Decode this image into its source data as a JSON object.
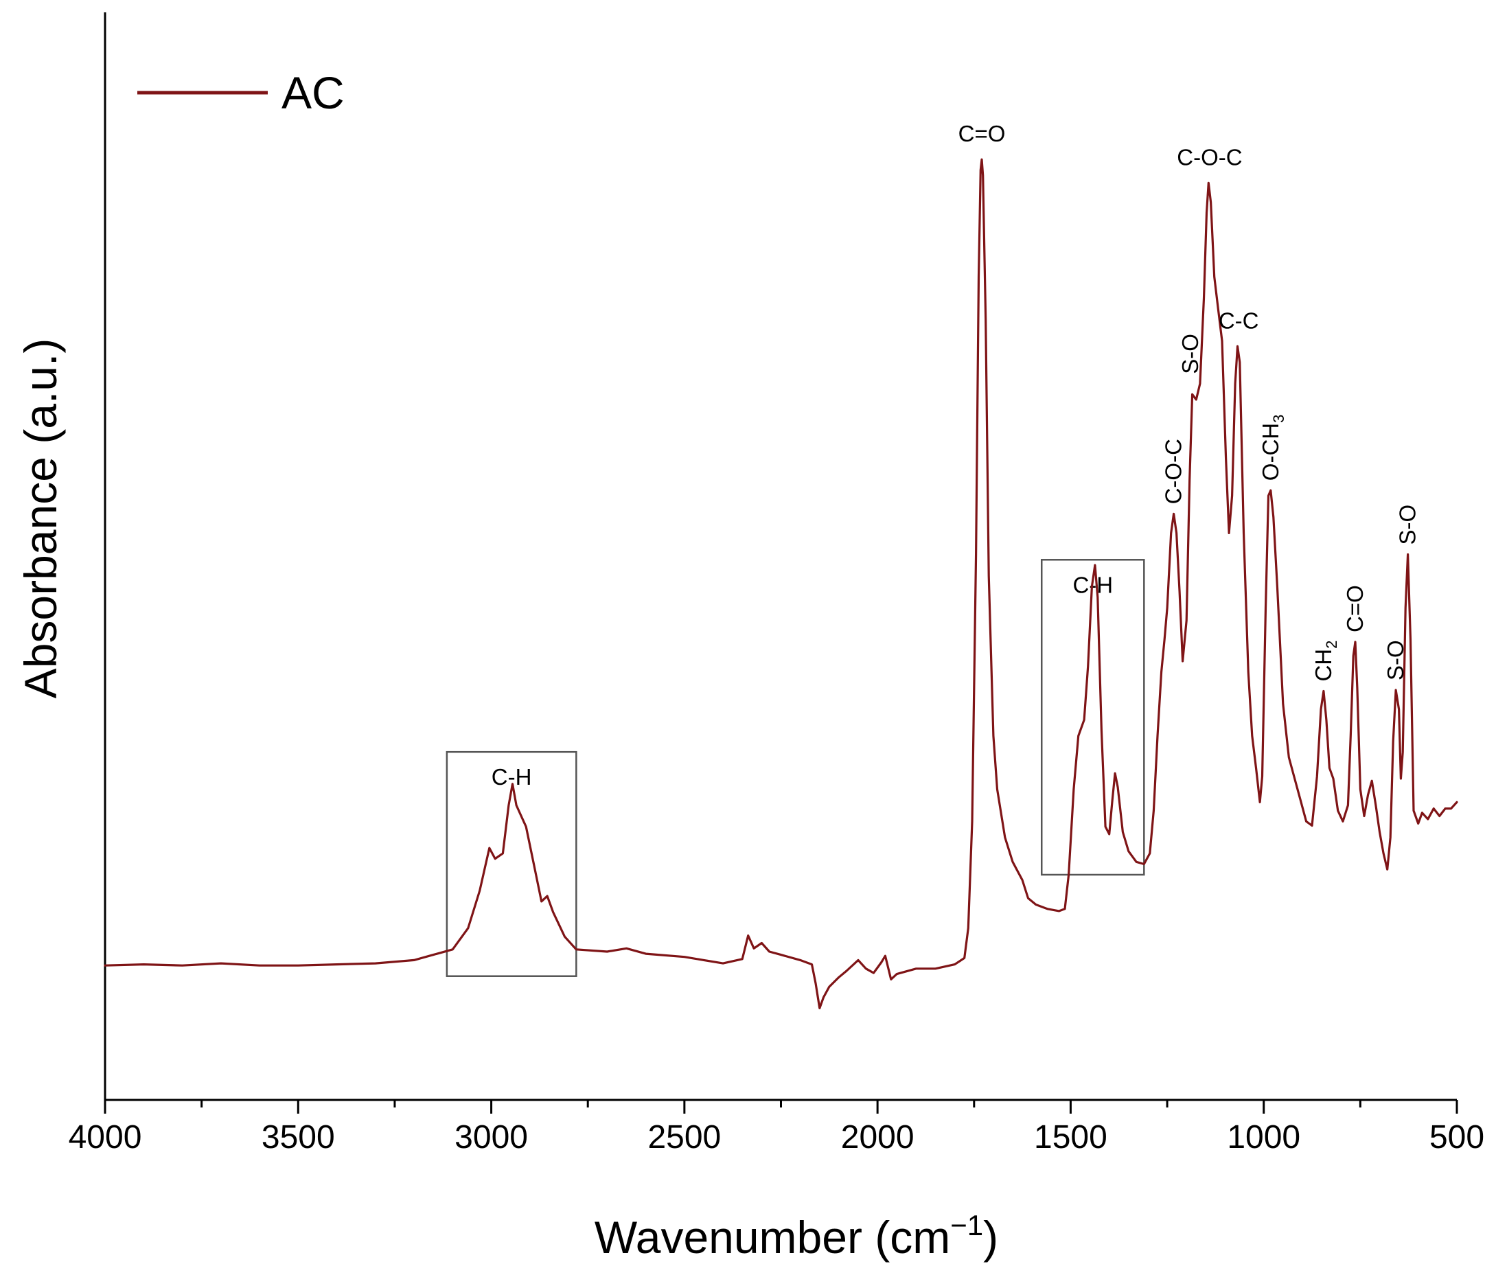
{
  "chart_data": {
    "type": "line",
    "xlabel": "Wavenumber (cm",
    "xlabel_sup": "−1",
    "xlabel_close": ")",
    "ylabel": "Absorbance (a.u.)",
    "xlim": [
      4000,
      500
    ],
    "x_reversed": true,
    "ylim": [
      0,
      1.0
    ],
    "x_ticks": [
      4000,
      3500,
      3000,
      2500,
      2000,
      1500,
      1000,
      500
    ],
    "x_tick_labels": [
      "4000",
      "3500",
      "3000",
      "2500",
      "2000",
      "1500",
      "1000",
      "500"
    ],
    "x_minor_ticks": [
      3750,
      3250,
      2750,
      2250,
      1750,
      1250,
      750
    ],
    "y_ticks_shown": false,
    "grid": false,
    "legend": {
      "position": "top-left",
      "entries": [
        {
          "label": "AC",
          "color": "#7f1416"
        }
      ]
    },
    "series": [
      {
        "name": "AC",
        "color": "#7f1416",
        "points": [
          [
            4000,
            0.115
          ],
          [
            3900,
            0.116
          ],
          [
            3800,
            0.115
          ],
          [
            3700,
            0.117
          ],
          [
            3600,
            0.115
          ],
          [
            3500,
            0.115
          ],
          [
            3400,
            0.116
          ],
          [
            3300,
            0.117
          ],
          [
            3200,
            0.12
          ],
          [
            3150,
            0.125
          ],
          [
            3100,
            0.13
          ],
          [
            3060,
            0.15
          ],
          [
            3030,
            0.185
          ],
          [
            3005,
            0.225
          ],
          [
            2990,
            0.215
          ],
          [
            2970,
            0.22
          ],
          [
            2955,
            0.265
          ],
          [
            2945,
            0.285
          ],
          [
            2935,
            0.265
          ],
          [
            2910,
            0.245
          ],
          [
            2890,
            0.21
          ],
          [
            2870,
            0.175
          ],
          [
            2855,
            0.18
          ],
          [
            2840,
            0.165
          ],
          [
            2810,
            0.142
          ],
          [
            2780,
            0.13
          ],
          [
            2700,
            0.128
          ],
          [
            2650,
            0.131
          ],
          [
            2600,
            0.126
          ],
          [
            2500,
            0.123
          ],
          [
            2450,
            0.12
          ],
          [
            2400,
            0.117
          ],
          [
            2350,
            0.121
          ],
          [
            2335,
            0.143
          ],
          [
            2320,
            0.131
          ],
          [
            2300,
            0.136
          ],
          [
            2280,
            0.128
          ],
          [
            2250,
            0.125
          ],
          [
            2200,
            0.12
          ],
          [
            2170,
            0.116
          ],
          [
            2160,
            0.098
          ],
          [
            2150,
            0.075
          ],
          [
            2140,
            0.085
          ],
          [
            2125,
            0.095
          ],
          [
            2100,
            0.104
          ],
          [
            2080,
            0.11
          ],
          [
            2050,
            0.12
          ],
          [
            2030,
            0.112
          ],
          [
            2010,
            0.108
          ],
          [
            1990,
            0.118
          ],
          [
            1980,
            0.124
          ],
          [
            1965,
            0.102
          ],
          [
            1950,
            0.107
          ],
          [
            1900,
            0.112
          ],
          [
            1850,
            0.112
          ],
          [
            1800,
            0.116
          ],
          [
            1775,
            0.122
          ],
          [
            1765,
            0.15
          ],
          [
            1755,
            0.25
          ],
          [
            1745,
            0.5
          ],
          [
            1738,
            0.76
          ],
          [
            1733,
            0.86
          ],
          [
            1730,
            0.87
          ],
          [
            1727,
            0.855
          ],
          [
            1720,
            0.72
          ],
          [
            1712,
            0.48
          ],
          [
            1700,
            0.33
          ],
          [
            1690,
            0.28
          ],
          [
            1670,
            0.235
          ],
          [
            1650,
            0.212
          ],
          [
            1625,
            0.195
          ],
          [
            1610,
            0.178
          ],
          [
            1590,
            0.172
          ],
          [
            1560,
            0.168
          ],
          [
            1530,
            0.166
          ],
          [
            1515,
            0.168
          ],
          [
            1505,
            0.2
          ],
          [
            1492,
            0.28
          ],
          [
            1480,
            0.33
          ],
          [
            1465,
            0.345
          ],
          [
            1455,
            0.395
          ],
          [
            1445,
            0.47
          ],
          [
            1437,
            0.49
          ],
          [
            1430,
            0.46
          ],
          [
            1420,
            0.335
          ],
          [
            1410,
            0.245
          ],
          [
            1400,
            0.238
          ],
          [
            1392,
            0.27
          ],
          [
            1385,
            0.295
          ],
          [
            1378,
            0.282
          ],
          [
            1365,
            0.24
          ],
          [
            1350,
            0.222
          ],
          [
            1330,
            0.212
          ],
          [
            1310,
            0.21
          ],
          [
            1295,
            0.22
          ],
          [
            1285,
            0.26
          ],
          [
            1275,
            0.33
          ],
          [
            1265,
            0.39
          ],
          [
            1257,
            0.42
          ],
          [
            1250,
            0.45
          ],
          [
            1240,
            0.52
          ],
          [
            1233,
            0.538
          ],
          [
            1226,
            0.52
          ],
          [
            1218,
            0.465
          ],
          [
            1210,
            0.4
          ],
          [
            1200,
            0.438
          ],
          [
            1192,
            0.57
          ],
          [
            1185,
            0.65
          ],
          [
            1175,
            0.645
          ],
          [
            1165,
            0.66
          ],
          [
            1155,
            0.74
          ],
          [
            1148,
            0.82
          ],
          [
            1143,
            0.848
          ],
          [
            1137,
            0.83
          ],
          [
            1128,
            0.76
          ],
          [
            1118,
            0.73
          ],
          [
            1108,
            0.7
          ],
          [
            1098,
            0.59
          ],
          [
            1090,
            0.52
          ],
          [
            1082,
            0.555
          ],
          [
            1074,
            0.66
          ],
          [
            1068,
            0.695
          ],
          [
            1062,
            0.68
          ],
          [
            1052,
            0.52
          ],
          [
            1040,
            0.39
          ],
          [
            1030,
            0.33
          ],
          [
            1020,
            0.3
          ],
          [
            1010,
            0.268
          ],
          [
            1004,
            0.292
          ],
          [
            995,
            0.45
          ],
          [
            988,
            0.555
          ],
          [
            982,
            0.56
          ],
          [
            975,
            0.535
          ],
          [
            965,
            0.47
          ],
          [
            950,
            0.36
          ],
          [
            935,
            0.31
          ],
          [
            920,
            0.29
          ],
          [
            905,
            0.27
          ],
          [
            890,
            0.25
          ],
          [
            875,
            0.246
          ],
          [
            862,
            0.292
          ],
          [
            852,
            0.355
          ],
          [
            845,
            0.372
          ],
          [
            838,
            0.345
          ],
          [
            830,
            0.3
          ],
          [
            820,
            0.29
          ],
          [
            808,
            0.26
          ],
          [
            795,
            0.25
          ],
          [
            782,
            0.265
          ],
          [
            775,
            0.33
          ],
          [
            768,
            0.405
          ],
          [
            763,
            0.418
          ],
          [
            758,
            0.375
          ],
          [
            750,
            0.28
          ],
          [
            740,
            0.255
          ],
          [
            730,
            0.275
          ],
          [
            720,
            0.288
          ],
          [
            710,
            0.265
          ],
          [
            700,
            0.24
          ],
          [
            690,
            0.22
          ],
          [
            680,
            0.205
          ],
          [
            672,
            0.235
          ],
          [
            665,
            0.325
          ],
          [
            658,
            0.373
          ],
          [
            650,
            0.355
          ],
          [
            645,
            0.29
          ],
          [
            640,
            0.315
          ],
          [
            633,
            0.45
          ],
          [
            627,
            0.5
          ],
          [
            620,
            0.42
          ],
          [
            612,
            0.26
          ],
          [
            600,
            0.248
          ],
          [
            590,
            0.258
          ],
          [
            575,
            0.252
          ],
          [
            560,
            0.262
          ],
          [
            545,
            0.255
          ],
          [
            530,
            0.262
          ],
          [
            515,
            0.262
          ],
          [
            500,
            0.268
          ]
        ]
      }
    ],
    "annotations": [
      {
        "text": "C=O",
        "x": 1730,
        "y": 0.87,
        "rotated": false
      },
      {
        "text": "C-O-C",
        "x": 1140,
        "y": 0.848,
        "rotated": false
      },
      {
        "text": "S-O",
        "x": 1190,
        "y": 0.66,
        "rotated": true
      },
      {
        "text": "C-C",
        "x": 1065,
        "y": 0.695,
        "rotated": false
      },
      {
        "text": "C-O-C",
        "x": 1233,
        "y": 0.538,
        "rotated": true
      },
      {
        "text": "O-CH",
        "sub": "3",
        "x": 982,
        "y": 0.56,
        "rotated": true
      },
      {
        "text": "CH",
        "sub": "2",
        "x": 845,
        "y": 0.372,
        "rotated": true
      },
      {
        "text": "C=O",
        "x": 763,
        "y": 0.418,
        "rotated": true
      },
      {
        "text": "S-O",
        "x": 658,
        "y": 0.373,
        "rotated": true
      },
      {
        "text": "S-O",
        "x": 627,
        "y": 0.5,
        "rotated": true
      }
    ],
    "boxes": [
      {
        "label": "C-H",
        "x0": 3115,
        "x1": 2780,
        "y0": 0.105,
        "y1": 0.315
      },
      {
        "label": "C-H",
        "x0": 1575,
        "x1": 1310,
        "y0": 0.2,
        "y1": 0.495
      }
    ]
  }
}
